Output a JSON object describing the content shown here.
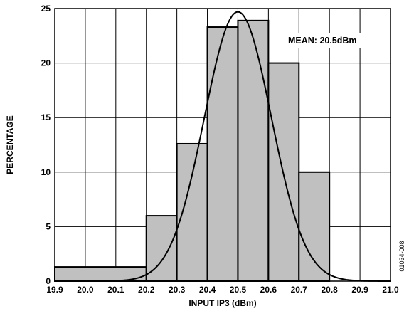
{
  "chart_data": {
    "type": "bar",
    "xlabel": "INPUT IP3 (dBm)",
    "ylabel": "PERCENTAGE",
    "xlim": [
      19.9,
      21.0
    ],
    "ylim": [
      0,
      25
    ],
    "grid": true,
    "x_ticks": [
      "19.9",
      "20.0",
      "20.1",
      "20.2",
      "20.3",
      "20.4",
      "20.5",
      "20.6",
      "20.7",
      "20.8",
      "20.9",
      "21.0"
    ],
    "y_ticks": [
      "0",
      "5",
      "10",
      "15",
      "20",
      "25"
    ],
    "bins": [
      {
        "start": 19.9,
        "end": 20.2,
        "value": 1.3
      },
      {
        "start": 20.2,
        "end": 20.3,
        "value": 6.0
      },
      {
        "start": 20.3,
        "end": 20.4,
        "value": 12.6
      },
      {
        "start": 20.4,
        "end": 20.5,
        "value": 23.3
      },
      {
        "start": 20.5,
        "end": 20.6,
        "value": 23.9
      },
      {
        "start": 20.6,
        "end": 20.7,
        "value": 20.0
      },
      {
        "start": 20.7,
        "end": 20.8,
        "value": 10.0
      }
    ],
    "curve": {
      "mean": 20.5,
      "sigma": 0.11,
      "peak": 24.7
    },
    "annotation": "MEAN: 20.5dBm",
    "figure_code": "01034-008",
    "colors": {
      "bar_fill": "#c0c0c0",
      "bar_stroke": "#000000",
      "grid": "#000000",
      "curve": "#000000"
    }
  }
}
